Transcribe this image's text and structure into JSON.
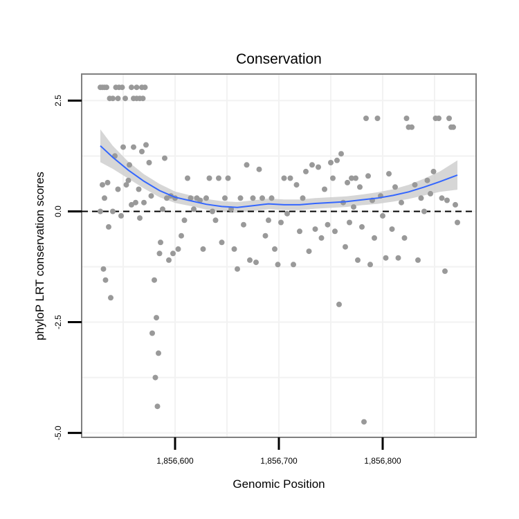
{
  "chart_data": {
    "type": "scatter",
    "title": "Conservation",
    "xlabel": "Genomic Position",
    "ylabel": "phyloP LRT conservation scores",
    "xlim": [
      1856510,
      1856890
    ],
    "ylim": [
      -5.1,
      3.1
    ],
    "x_ticks": [
      1856600,
      1856700,
      1856800
    ],
    "x_tick_labels": [
      "1,856,600",
      "1,856,700",
      "1,856,800"
    ],
    "y_ticks": [
      -5.0,
      -2.5,
      0.0,
      2.5
    ],
    "y_tick_labels": [
      "-5.0",
      "-2.5",
      "0.0",
      "2.5"
    ],
    "grid": true,
    "reference_line": {
      "y": 0,
      "style": "dashed"
    },
    "colors": {
      "points": "#999999",
      "smooth_line": "#3366ff",
      "confidence_band": "#cccccc",
      "panel_border": "#7f7f7f",
      "grid": "#f2f2f2"
    },
    "points": [
      {
        "x": 1856528,
        "y": 2.8
      },
      {
        "x": 1856530,
        "y": 2.8
      },
      {
        "x": 1856532,
        "y": 2.8
      },
      {
        "x": 1856534,
        "y": 2.8
      },
      {
        "x": 1856537,
        "y": 2.55
      },
      {
        "x": 1856540,
        "y": 2.55
      },
      {
        "x": 1856543,
        "y": 2.8
      },
      {
        "x": 1856546,
        "y": 2.8
      },
      {
        "x": 1856549,
        "y": 2.8
      },
      {
        "x": 1856545,
        "y": 2.55
      },
      {
        "x": 1856552,
        "y": 2.55
      },
      {
        "x": 1856558,
        "y": 2.8
      },
      {
        "x": 1856563,
        "y": 2.8
      },
      {
        "x": 1856568,
        "y": 2.8
      },
      {
        "x": 1856571,
        "y": 2.8
      },
      {
        "x": 1856560,
        "y": 2.55
      },
      {
        "x": 1856563,
        "y": 2.55
      },
      {
        "x": 1856566,
        "y": 2.55
      },
      {
        "x": 1856569,
        "y": 2.55
      },
      {
        "x": 1856528,
        "y": 0.0
      },
      {
        "x": 1856530,
        "y": 0.6
      },
      {
        "x": 1856532,
        "y": 0.3
      },
      {
        "x": 1856531,
        "y": -1.3
      },
      {
        "x": 1856533,
        "y": -1.55
      },
      {
        "x": 1856535,
        "y": 0.65
      },
      {
        "x": 1856536,
        "y": -0.35
      },
      {
        "x": 1856538,
        "y": -1.95
      },
      {
        "x": 1856540,
        "y": 0.0
      },
      {
        "x": 1856542,
        "y": 1.25
      },
      {
        "x": 1856545,
        "y": 0.5
      },
      {
        "x": 1856548,
        "y": -0.1
      },
      {
        "x": 1856550,
        "y": 1.45
      },
      {
        "x": 1856553,
        "y": 0.6
      },
      {
        "x": 1856555,
        "y": 0.7
      },
      {
        "x": 1856556,
        "y": 1.05
      },
      {
        "x": 1856558,
        "y": 0.15
      },
      {
        "x": 1856560,
        "y": 1.45
      },
      {
        "x": 1856562,
        "y": 0.2
      },
      {
        "x": 1856565,
        "y": 0.5
      },
      {
        "x": 1856566,
        "y": -0.15
      },
      {
        "x": 1856568,
        "y": 1.35
      },
      {
        "x": 1856570,
        "y": 0.2
      },
      {
        "x": 1856572,
        "y": 1.5
      },
      {
        "x": 1856575,
        "y": 1.1
      },
      {
        "x": 1856577,
        "y": 0.35
      },
      {
        "x": 1856578,
        "y": -2.75
      },
      {
        "x": 1856580,
        "y": -1.55
      },
      {
        "x": 1856581,
        "y": -3.75
      },
      {
        "x": 1856582,
        "y": -2.4
      },
      {
        "x": 1856583,
        "y": -4.4
      },
      {
        "x": 1856584,
        "y": -3.2
      },
      {
        "x": 1856585,
        "y": -0.95
      },
      {
        "x": 1856586,
        "y": -0.7
      },
      {
        "x": 1856588,
        "y": 0.05
      },
      {
        "x": 1856590,
        "y": 1.2
      },
      {
        "x": 1856592,
        "y": 0.3
      },
      {
        "x": 1856594,
        "y": -1.1
      },
      {
        "x": 1856596,
        "y": 0.35
      },
      {
        "x": 1856598,
        "y": -0.95
      },
      {
        "x": 1856600,
        "y": 0.3
      },
      {
        "x": 1856603,
        "y": -0.85
      },
      {
        "x": 1856606,
        "y": -0.55
      },
      {
        "x": 1856609,
        "y": -0.2
      },
      {
        "x": 1856612,
        "y": 0.75
      },
      {
        "x": 1856615,
        "y": 0.3
      },
      {
        "x": 1856618,
        "y": 0.05
      },
      {
        "x": 1856621,
        "y": 0.3
      },
      {
        "x": 1856624,
        "y": 0.25
      },
      {
        "x": 1856627,
        "y": -0.85
      },
      {
        "x": 1856630,
        "y": 0.3
      },
      {
        "x": 1856633,
        "y": 0.75
      },
      {
        "x": 1856636,
        "y": 0.0
      },
      {
        "x": 1856639,
        "y": -0.2
      },
      {
        "x": 1856642,
        "y": 0.75
      },
      {
        "x": 1856645,
        "y": -0.7
      },
      {
        "x": 1856648,
        "y": 0.3
      },
      {
        "x": 1856651,
        "y": 0.75
      },
      {
        "x": 1856654,
        "y": 0.05
      },
      {
        "x": 1856657,
        "y": -0.85
      },
      {
        "x": 1856660,
        "y": -1.3
      },
      {
        "x": 1856663,
        "y": 0.3
      },
      {
        "x": 1856666,
        "y": -0.3
      },
      {
        "x": 1856669,
        "y": 1.05
      },
      {
        "x": 1856672,
        "y": -1.1
      },
      {
        "x": 1856675,
        "y": 0.3
      },
      {
        "x": 1856678,
        "y": -1.15
      },
      {
        "x": 1856681,
        "y": 0.95
      },
      {
        "x": 1856684,
        "y": 0.3
      },
      {
        "x": 1856687,
        "y": -0.55
      },
      {
        "x": 1856690,
        "y": -0.2
      },
      {
        "x": 1856693,
        "y": 0.3
      },
      {
        "x": 1856696,
        "y": -0.85
      },
      {
        "x": 1856699,
        "y": -1.2
      },
      {
        "x": 1856702,
        "y": -0.25
      },
      {
        "x": 1856705,
        "y": 0.75
      },
      {
        "x": 1856708,
        "y": -0.05
      },
      {
        "x": 1856711,
        "y": 0.75
      },
      {
        "x": 1856714,
        "y": -1.2
      },
      {
        "x": 1856717,
        "y": 0.6
      },
      {
        "x": 1856720,
        "y": -0.45
      },
      {
        "x": 1856723,
        "y": 0.3
      },
      {
        "x": 1856726,
        "y": 0.9
      },
      {
        "x": 1856729,
        "y": -0.9
      },
      {
        "x": 1856732,
        "y": 1.05
      },
      {
        "x": 1856735,
        "y": -0.4
      },
      {
        "x": 1856738,
        "y": 1.0
      },
      {
        "x": 1856741,
        "y": -0.6
      },
      {
        "x": 1856744,
        "y": 0.5
      },
      {
        "x": 1856747,
        "y": -0.3
      },
      {
        "x": 1856750,
        "y": 1.1
      },
      {
        "x": 1856752,
        "y": 0.75
      },
      {
        "x": 1856754,
        "y": -0.45
      },
      {
        "x": 1856756,
        "y": 1.15
      },
      {
        "x": 1856758,
        "y": -2.1
      },
      {
        "x": 1856760,
        "y": 1.3
      },
      {
        "x": 1856762,
        "y": 0.2
      },
      {
        "x": 1856764,
        "y": -0.8
      },
      {
        "x": 1856766,
        "y": 0.65
      },
      {
        "x": 1856768,
        "y": -0.25
      },
      {
        "x": 1856770,
        "y": 0.75
      },
      {
        "x": 1856772,
        "y": 0.1
      },
      {
        "x": 1856774,
        "y": 0.75
      },
      {
        "x": 1856776,
        "y": -1.1
      },
      {
        "x": 1856778,
        "y": 0.55
      },
      {
        "x": 1856780,
        "y": -0.35
      },
      {
        "x": 1856782,
        "y": -4.75
      },
      {
        "x": 1856784,
        "y": 2.1
      },
      {
        "x": 1856786,
        "y": 0.8
      },
      {
        "x": 1856788,
        "y": -1.2
      },
      {
        "x": 1856790,
        "y": 0.25
      },
      {
        "x": 1856792,
        "y": -0.6
      },
      {
        "x": 1856795,
        "y": 2.1
      },
      {
        "x": 1856798,
        "y": 0.35
      },
      {
        "x": 1856800,
        "y": -0.1
      },
      {
        "x": 1856803,
        "y": -1.05
      },
      {
        "x": 1856806,
        "y": 0.85
      },
      {
        "x": 1856809,
        "y": -0.4
      },
      {
        "x": 1856812,
        "y": 0.55
      },
      {
        "x": 1856815,
        "y": -1.05
      },
      {
        "x": 1856818,
        "y": 0.2
      },
      {
        "x": 1856821,
        "y": -0.6
      },
      {
        "x": 1856823,
        "y": 2.1
      },
      {
        "x": 1856825,
        "y": 1.9
      },
      {
        "x": 1856828,
        "y": 1.9
      },
      {
        "x": 1856831,
        "y": 0.6
      },
      {
        "x": 1856834,
        "y": -1.1
      },
      {
        "x": 1856837,
        "y": 0.3
      },
      {
        "x": 1856840,
        "y": 0.0
      },
      {
        "x": 1856843,
        "y": 0.7
      },
      {
        "x": 1856846,
        "y": 0.4
      },
      {
        "x": 1856849,
        "y": 0.9
      },
      {
        "x": 1856851,
        "y": 2.1
      },
      {
        "x": 1856854,
        "y": 2.1
      },
      {
        "x": 1856857,
        "y": 0.3
      },
      {
        "x": 1856860,
        "y": -1.35
      },
      {
        "x": 1856862,
        "y": 0.25
      },
      {
        "x": 1856864,
        "y": 2.1
      },
      {
        "x": 1856866,
        "y": 1.9
      },
      {
        "x": 1856868,
        "y": 1.9
      },
      {
        "x": 1856870,
        "y": 0.15
      },
      {
        "x": 1856872,
        "y": -0.25
      }
    ],
    "smooth_line": [
      {
        "x": 1856528,
        "y": 1.48
      },
      {
        "x": 1856540,
        "y": 1.22
      },
      {
        "x": 1856555,
        "y": 0.93
      },
      {
        "x": 1856570,
        "y": 0.68
      },
      {
        "x": 1856585,
        "y": 0.47
      },
      {
        "x": 1856600,
        "y": 0.32
      },
      {
        "x": 1856615,
        "y": 0.24
      },
      {
        "x": 1856630,
        "y": 0.16
      },
      {
        "x": 1856645,
        "y": 0.11
      },
      {
        "x": 1856660,
        "y": 0.09
      },
      {
        "x": 1856675,
        "y": 0.13
      },
      {
        "x": 1856690,
        "y": 0.17
      },
      {
        "x": 1856705,
        "y": 0.15
      },
      {
        "x": 1856720,
        "y": 0.15
      },
      {
        "x": 1856735,
        "y": 0.18
      },
      {
        "x": 1856750,
        "y": 0.2
      },
      {
        "x": 1856765,
        "y": 0.22
      },
      {
        "x": 1856780,
        "y": 0.26
      },
      {
        "x": 1856795,
        "y": 0.3
      },
      {
        "x": 1856810,
        "y": 0.36
      },
      {
        "x": 1856825,
        "y": 0.44
      },
      {
        "x": 1856840,
        "y": 0.55
      },
      {
        "x": 1856855,
        "y": 0.67
      },
      {
        "x": 1856872,
        "y": 0.82
      }
    ],
    "confidence_band": {
      "upper": [
        1.85,
        1.48,
        1.12,
        0.84,
        0.62,
        0.45,
        0.36,
        0.28,
        0.23,
        0.21,
        0.25,
        0.29,
        0.27,
        0.27,
        0.3,
        0.32,
        0.34,
        0.38,
        0.43,
        0.5,
        0.6,
        0.74,
        0.9,
        1.15
      ],
      "lower": [
        1.11,
        0.96,
        0.74,
        0.52,
        0.32,
        0.19,
        0.12,
        0.04,
        -0.01,
        -0.03,
        0.01,
        0.05,
        0.03,
        0.03,
        0.06,
        0.08,
        0.1,
        0.14,
        0.17,
        0.22,
        0.28,
        0.36,
        0.44,
        0.49
      ]
    }
  }
}
